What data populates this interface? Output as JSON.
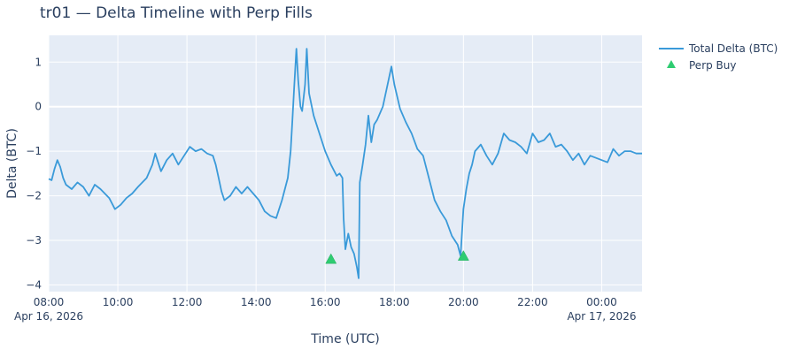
{
  "chart_data": {
    "type": "line",
    "title": "tr01 — Delta Timeline with Perp Fills",
    "xlabel": "Time (UTC)",
    "ylabel": "Delta (BTC)",
    "x_range": [
      "2026-04-16 08:00",
      "2026-04-17 01:10"
    ],
    "ylim": [
      -4.15,
      1.6
    ],
    "grid": true,
    "legend_position": "top-right",
    "x_ticks": [
      {
        "t": "2026-04-16 08:00",
        "label": "08:00",
        "sublabel": "Apr 16, 2026"
      },
      {
        "t": "2026-04-16 10:00",
        "label": "10:00"
      },
      {
        "t": "2026-04-16 12:00",
        "label": "12:00"
      },
      {
        "t": "2026-04-16 14:00",
        "label": "14:00"
      },
      {
        "t": "2026-04-16 16:00",
        "label": "16:00"
      },
      {
        "t": "2026-04-16 18:00",
        "label": "18:00"
      },
      {
        "t": "2026-04-16 20:00",
        "label": "20:00"
      },
      {
        "t": "2026-04-16 22:00",
        "label": "22:00"
      },
      {
        "t": "2026-04-17 00:00",
        "label": "00:00",
        "sublabel": "Apr 17, 2026"
      }
    ],
    "y_ticks": [
      {
        "v": 1,
        "label": "1"
      },
      {
        "v": 0,
        "label": "0"
      },
      {
        "v": -1,
        "label": "−1"
      },
      {
        "v": -2,
        "label": "−2"
      },
      {
        "v": -3,
        "label": "−3"
      },
      {
        "v": -4,
        "label": "−4"
      }
    ],
    "series": [
      {
        "name": "Total Delta (BTC)",
        "color": "#3a9ad9",
        "mode": "line",
        "points": [
          [
            "2026-04-16 08:00",
            -1.62
          ],
          [
            "2026-04-16 08:05",
            -1.65
          ],
          [
            "2026-04-16 08:10",
            -1.4
          ],
          [
            "2026-04-16 08:15",
            -1.2
          ],
          [
            "2026-04-16 08:20",
            -1.35
          ],
          [
            "2026-04-16 08:25",
            -1.6
          ],
          [
            "2026-04-16 08:30",
            -1.75
          ],
          [
            "2026-04-16 08:40",
            -1.85
          ],
          [
            "2026-04-16 08:50",
            -1.7
          ],
          [
            "2026-04-16 09:00",
            -1.8
          ],
          [
            "2026-04-16 09:10",
            -2.0
          ],
          [
            "2026-04-16 09:20",
            -1.75
          ],
          [
            "2026-04-16 09:30",
            -1.85
          ],
          [
            "2026-04-16 09:45",
            -2.05
          ],
          [
            "2026-04-16 09:55",
            -2.3
          ],
          [
            "2026-04-16 10:05",
            -2.2
          ],
          [
            "2026-04-16 10:15",
            -2.05
          ],
          [
            "2026-04-16 10:25",
            -1.95
          ],
          [
            "2026-04-16 10:35",
            -1.8
          ],
          [
            "2026-04-16 10:50",
            -1.6
          ],
          [
            "2026-04-16 11:00",
            -1.3
          ],
          [
            "2026-04-16 11:05",
            -1.05
          ],
          [
            "2026-04-16 11:15",
            -1.45
          ],
          [
            "2026-04-16 11:25",
            -1.2
          ],
          [
            "2026-04-16 11:35",
            -1.05
          ],
          [
            "2026-04-16 11:45",
            -1.3
          ],
          [
            "2026-04-16 11:55",
            -1.1
          ],
          [
            "2026-04-16 12:05",
            -0.9
          ],
          [
            "2026-04-16 12:15",
            -1.0
          ],
          [
            "2026-04-16 12:25",
            -0.95
          ],
          [
            "2026-04-16 12:35",
            -1.05
          ],
          [
            "2026-04-16 12:45",
            -1.1
          ],
          [
            "2026-04-16 12:50",
            -1.3
          ],
          [
            "2026-04-16 12:55",
            -1.6
          ],
          [
            "2026-04-16 13:00",
            -1.9
          ],
          [
            "2026-04-16 13:05",
            -2.1
          ],
          [
            "2026-04-16 13:15",
            -2.0
          ],
          [
            "2026-04-16 13:25",
            -1.8
          ],
          [
            "2026-04-16 13:35",
            -1.95
          ],
          [
            "2026-04-16 13:45",
            -1.8
          ],
          [
            "2026-04-16 13:55",
            -1.95
          ],
          [
            "2026-04-16 14:05",
            -2.1
          ],
          [
            "2026-04-16 14:15",
            -2.35
          ],
          [
            "2026-04-16 14:25",
            -2.45
          ],
          [
            "2026-04-16 14:35",
            -2.5
          ],
          [
            "2026-04-16 14:45",
            -2.1
          ],
          [
            "2026-04-16 14:55",
            -1.6
          ],
          [
            "2026-04-16 15:00",
            -1.0
          ],
          [
            "2026-04-16 15:03",
            -0.3
          ],
          [
            "2026-04-16 15:06",
            0.4
          ],
          [
            "2026-04-16 15:10",
            1.3
          ],
          [
            "2026-04-16 15:13",
            0.6
          ],
          [
            "2026-04-16 15:17",
            0.0
          ],
          [
            "2026-04-16 15:20",
            -0.1
          ],
          [
            "2026-04-16 15:25",
            0.5
          ],
          [
            "2026-04-16 15:28",
            1.3
          ],
          [
            "2026-04-16 15:32",
            0.3
          ],
          [
            "2026-04-16 15:40",
            -0.2
          ],
          [
            "2026-04-16 15:50",
            -0.6
          ],
          [
            "2026-04-16 16:00",
            -1.0
          ],
          [
            "2026-04-16 16:10",
            -1.3
          ],
          [
            "2026-04-16 16:20",
            -1.55
          ],
          [
            "2026-04-16 16:25",
            -1.5
          ],
          [
            "2026-04-16 16:30",
            -1.6
          ],
          [
            "2026-04-16 16:32",
            -2.5
          ],
          [
            "2026-04-16 16:35",
            -3.2
          ],
          [
            "2026-04-16 16:40",
            -2.85
          ],
          [
            "2026-04-16 16:45",
            -3.15
          ],
          [
            "2026-04-16 16:50",
            -3.3
          ],
          [
            "2026-04-16 16:55",
            -3.6
          ],
          [
            "2026-04-16 16:58",
            -3.85
          ],
          [
            "2026-04-16 17:00",
            -1.7
          ],
          [
            "2026-04-16 17:05",
            -1.3
          ],
          [
            "2026-04-16 17:10",
            -0.85
          ],
          [
            "2026-04-16 17:15",
            -0.2
          ],
          [
            "2026-04-16 17:20",
            -0.8
          ],
          [
            "2026-04-16 17:25",
            -0.4
          ],
          [
            "2026-04-16 17:30",
            -0.3
          ],
          [
            "2026-04-16 17:40",
            0.0
          ],
          [
            "2026-04-16 17:50",
            0.6
          ],
          [
            "2026-04-16 17:55",
            0.9
          ],
          [
            "2026-04-16 18:00",
            0.5
          ],
          [
            "2026-04-16 18:10",
            -0.05
          ],
          [
            "2026-04-16 18:20",
            -0.35
          ],
          [
            "2026-04-16 18:30",
            -0.6
          ],
          [
            "2026-04-16 18:40",
            -0.95
          ],
          [
            "2026-04-16 18:50",
            -1.1
          ],
          [
            "2026-04-16 19:00",
            -1.6
          ],
          [
            "2026-04-16 19:10",
            -2.1
          ],
          [
            "2026-04-16 19:20",
            -2.35
          ],
          [
            "2026-04-16 19:30",
            -2.55
          ],
          [
            "2026-04-16 19:40",
            -2.9
          ],
          [
            "2026-04-16 19:50",
            -3.1
          ],
          [
            "2026-04-16 19:55",
            -3.35
          ],
          [
            "2026-04-16 20:00",
            -2.3
          ],
          [
            "2026-04-16 20:05",
            -1.85
          ],
          [
            "2026-04-16 20:10",
            -1.5
          ],
          [
            "2026-04-16 20:15",
            -1.3
          ],
          [
            "2026-04-16 20:20",
            -1.0
          ],
          [
            "2026-04-16 20:30",
            -0.85
          ],
          [
            "2026-04-16 20:40",
            -1.1
          ],
          [
            "2026-04-16 20:50",
            -1.3
          ],
          [
            "2026-04-16 21:00",
            -1.05
          ],
          [
            "2026-04-16 21:10",
            -0.6
          ],
          [
            "2026-04-16 21:20",
            -0.75
          ],
          [
            "2026-04-16 21:30",
            -0.8
          ],
          [
            "2026-04-16 21:40",
            -0.9
          ],
          [
            "2026-04-16 21:50",
            -1.05
          ],
          [
            "2026-04-16 22:00",
            -0.6
          ],
          [
            "2026-04-16 22:10",
            -0.8
          ],
          [
            "2026-04-16 22:20",
            -0.75
          ],
          [
            "2026-04-16 22:30",
            -0.6
          ],
          [
            "2026-04-16 22:40",
            -0.9
          ],
          [
            "2026-04-16 22:50",
            -0.85
          ],
          [
            "2026-04-16 23:00",
            -1.0
          ],
          [
            "2026-04-16 23:10",
            -1.2
          ],
          [
            "2026-04-16 23:20",
            -1.05
          ],
          [
            "2026-04-16 23:30",
            -1.3
          ],
          [
            "2026-04-16 23:40",
            -1.1
          ],
          [
            "2026-04-16 23:50",
            -1.15
          ],
          [
            "2026-04-17 00:00",
            -1.2
          ],
          [
            "2026-04-17 00:10",
            -1.25
          ],
          [
            "2026-04-17 00:20",
            -0.95
          ],
          [
            "2026-04-17 00:30",
            -1.1
          ],
          [
            "2026-04-17 00:40",
            -1.0
          ],
          [
            "2026-04-17 00:50",
            -1.0
          ],
          [
            "2026-04-17 01:00",
            -1.05
          ],
          [
            "2026-04-17 01:10",
            -1.05
          ]
        ]
      },
      {
        "name": "Perp Buy",
        "color": "#2ecc71",
        "mode": "markers",
        "marker": "triangle-up",
        "points": [
          [
            "2026-04-16 16:10",
            -3.42
          ],
          [
            "2026-04-16 20:00",
            -3.35
          ]
        ]
      }
    ]
  }
}
